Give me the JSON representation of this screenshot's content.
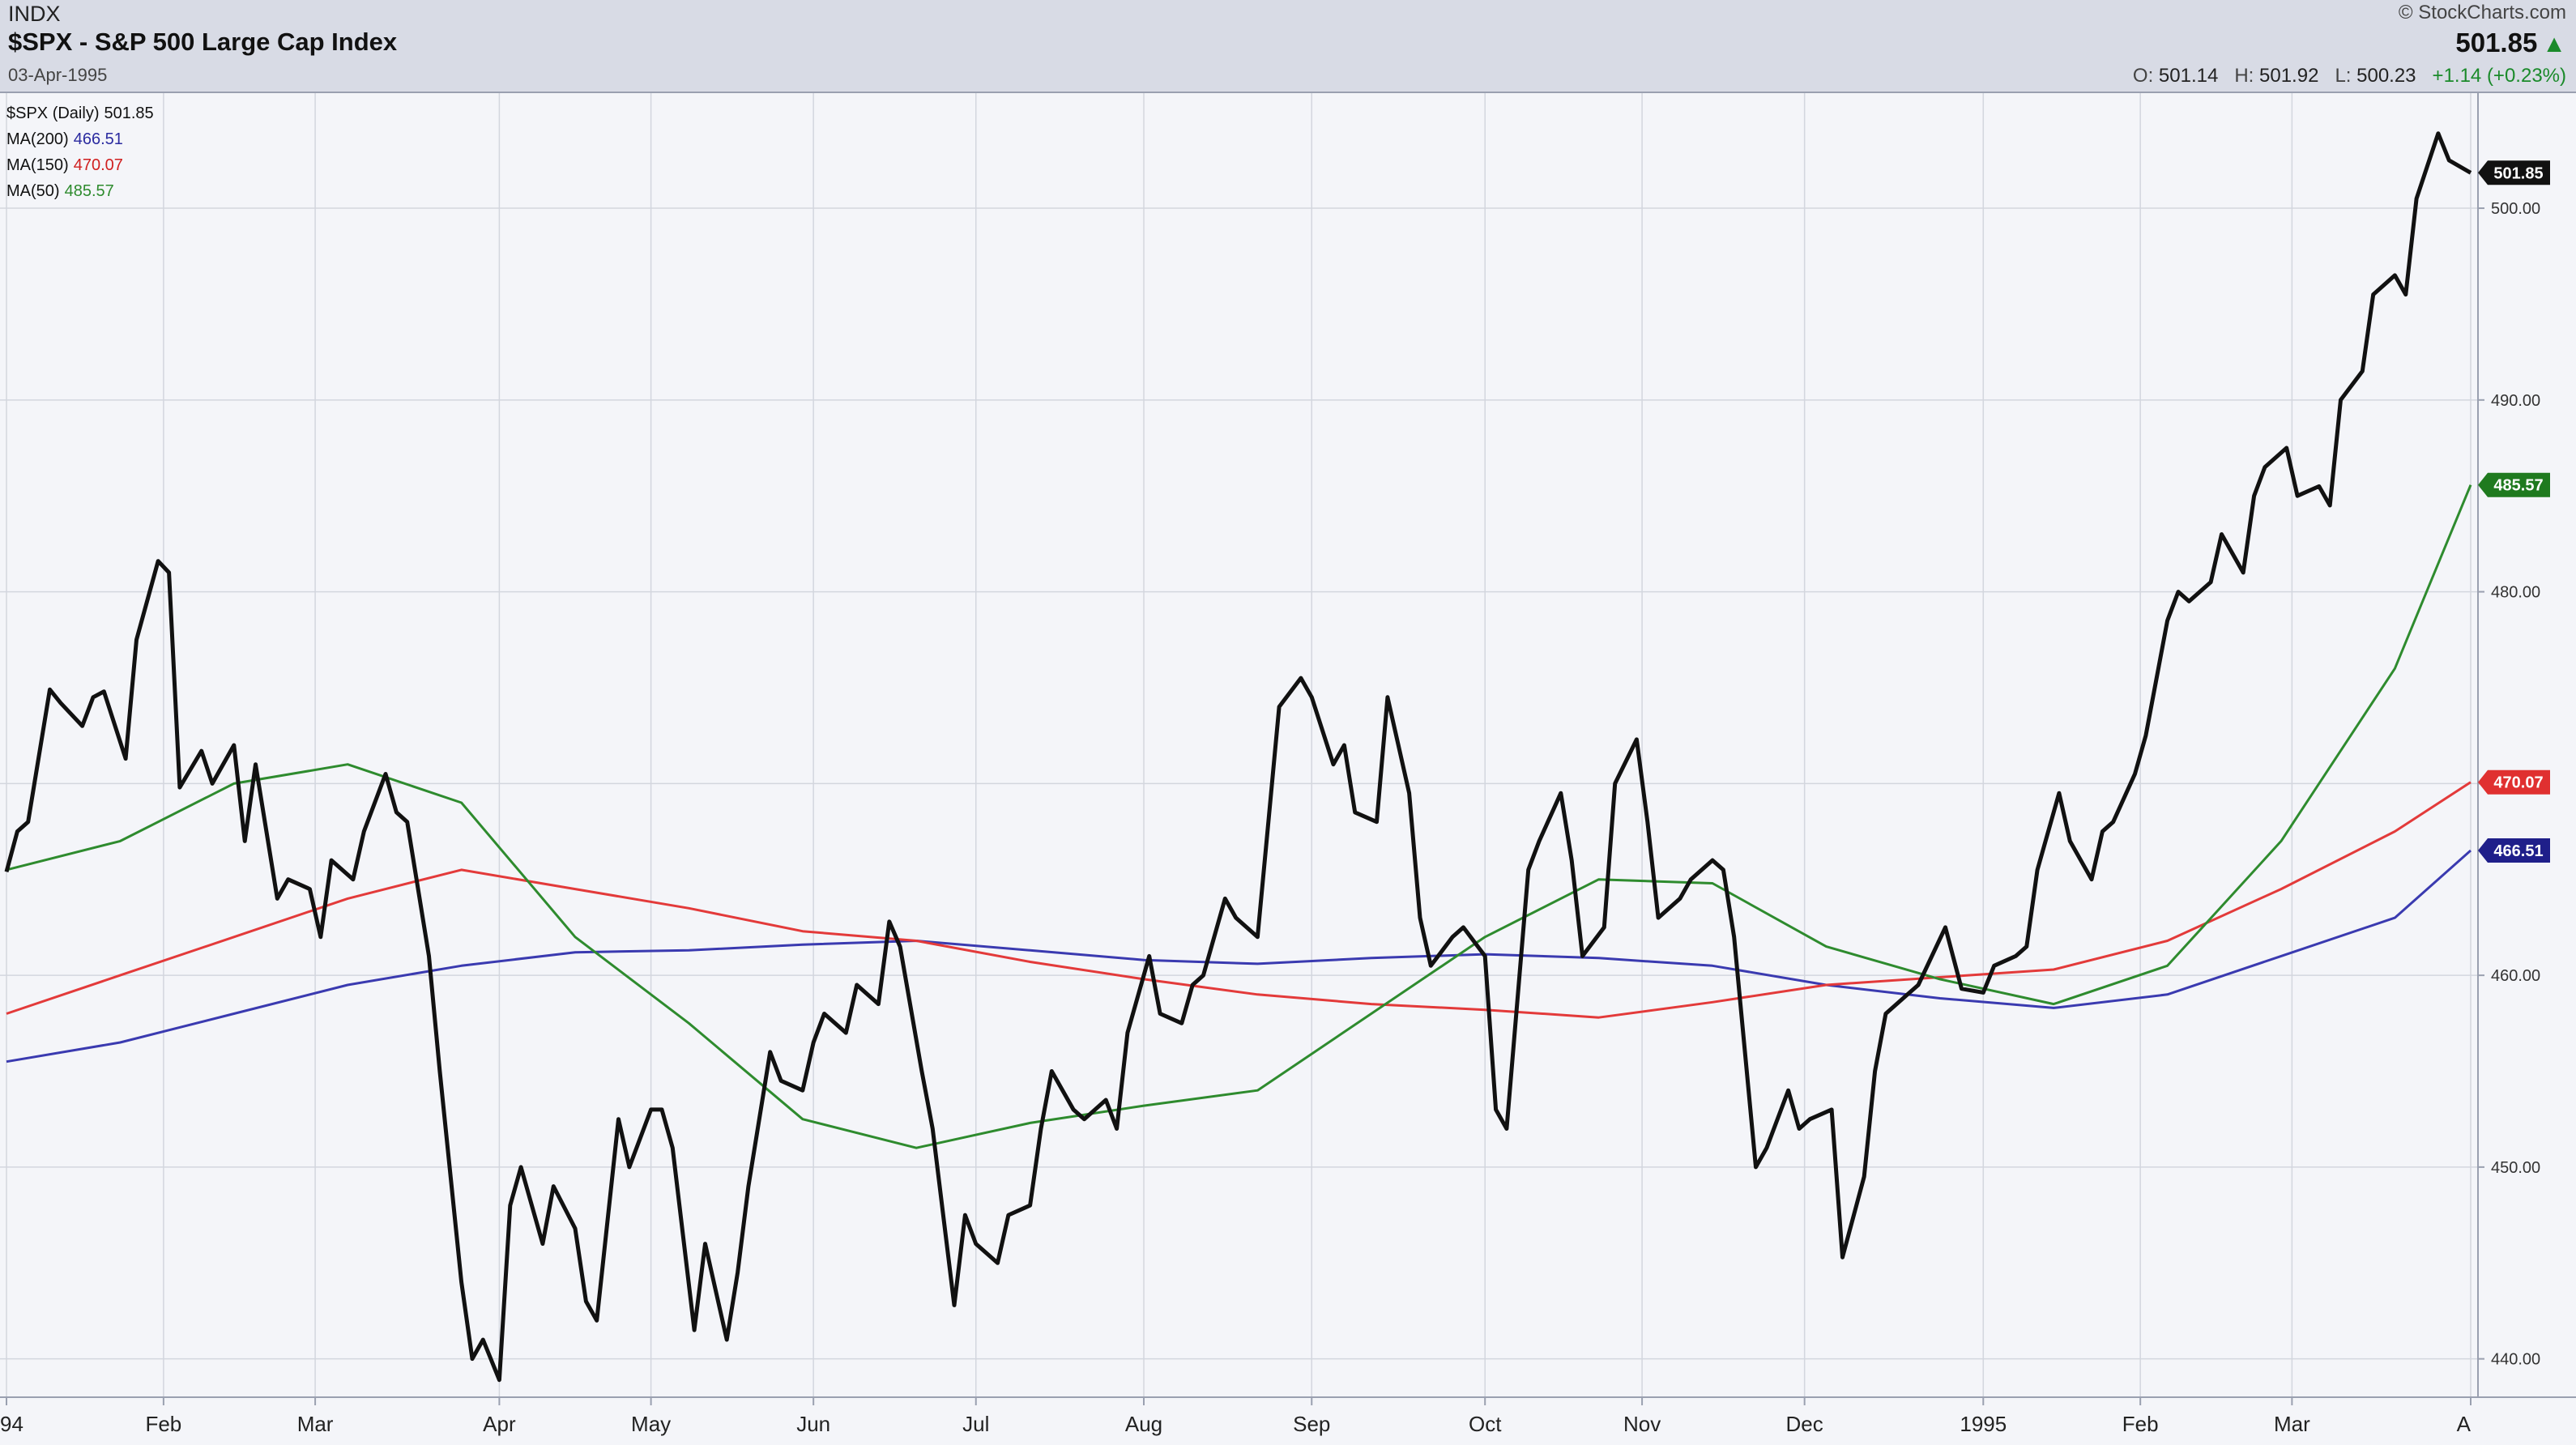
{
  "header": {
    "exchange": "INDX",
    "title": "$SPX - S&P 500 Large Cap Index",
    "date": "03-Apr-1995",
    "brand": "© StockCharts.com",
    "last": "501.85",
    "ohlc": {
      "o_label": "O:",
      "o": "501.14",
      "h_label": "H:",
      "h": "501.92",
      "l_label": "L:",
      "l": "500.23",
      "change": "+1.14 (+0.23%)"
    }
  },
  "legend": [
    {
      "label": "$SPX (Daily)",
      "value": "501.85",
      "color": "#111111"
    },
    {
      "label": "MA(200)",
      "value": "466.51",
      "color": "#2b2ba0"
    },
    {
      "label": "MA(150)",
      "value": "470.07",
      "color": "#e03030"
    },
    {
      "label": "MA(50)",
      "value": "485.57",
      "color": "#2e8b2e"
    }
  ],
  "colors": {
    "price": "#111111",
    "ma200": "#3a3ab0",
    "ma150": "#e33a3a",
    "ma50": "#2e8b2e",
    "grid": "#d3d6de",
    "up": "#1a8a2a"
  },
  "chart_data": {
    "type": "line",
    "title": "$SPX - S&P 500 Large Cap Index",
    "ylim": [
      438,
      506
    ],
    "y_ticks": [
      "440.00",
      "450.00",
      "460.00",
      "470.00",
      "480.00",
      "490.00",
      "500.00"
    ],
    "x_tick_labels": [
      "94",
      "Feb",
      "Mar",
      "Apr",
      "May",
      "Jun",
      "Jul",
      "Aug",
      "Sep",
      "Oct",
      "Nov",
      "Dec",
      "1995",
      "Feb",
      "Mar",
      "A"
    ],
    "x_ticks": [
      {
        "label": "94",
        "date": "1994-01-03"
      },
      {
        "label": "Feb",
        "date": "1994-02-01"
      },
      {
        "label": "Mar",
        "date": "1994-03-01"
      },
      {
        "label": "Apr",
        "date": "1994-04-04"
      },
      {
        "label": "May",
        "date": "1994-05-02"
      },
      {
        "label": "Jun",
        "date": "1994-06-01"
      },
      {
        "label": "Jul",
        "date": "1994-07-01"
      },
      {
        "label": "Aug",
        "date": "1994-08-01"
      },
      {
        "label": "Sep",
        "date": "1994-09-01"
      },
      {
        "label": "Oct",
        "date": "1994-10-03"
      },
      {
        "label": "Nov",
        "date": "1994-11-01"
      },
      {
        "label": "Dec",
        "date": "1994-12-01"
      },
      {
        "label": "1995",
        "date": "1995-01-03"
      },
      {
        "label": "Feb",
        "date": "1995-02-01"
      },
      {
        "label": "Mar",
        "date": "1995-03-01"
      },
      {
        "label": "A",
        "date": "1995-04-03"
      }
    ],
    "last_value_tags": [
      {
        "series": "$SPX (Daily)",
        "value": "501.85",
        "color": "#111111"
      },
      {
        "series": "MA(50)",
        "value": "485.57",
        "color": "#1f7a1f"
      },
      {
        "series": "MA(150)",
        "value": "470.07",
        "color": "#e03030"
      },
      {
        "series": "MA(200)",
        "value": "466.51",
        "color": "#1f1f8a"
      }
    ],
    "series": [
      {
        "name": "$SPX (Daily)",
        "color": "#111111",
        "points": [
          [
            "1994-01-03",
            465.4
          ],
          [
            "1994-01-05",
            467.5
          ],
          [
            "1994-01-07",
            468.0
          ],
          [
            "1994-01-11",
            474.9
          ],
          [
            "1994-01-13",
            474.2
          ],
          [
            "1994-01-17",
            473.0
          ],
          [
            "1994-01-19",
            474.5
          ],
          [
            "1994-01-21",
            474.8
          ],
          [
            "1994-01-25",
            471.3
          ],
          [
            "1994-01-27",
            477.5
          ],
          [
            "1994-01-31",
            481.6
          ],
          [
            "1994-02-02",
            481.0
          ],
          [
            "1994-02-04",
            469.8
          ],
          [
            "1994-02-08",
            471.7
          ],
          [
            "1994-02-10",
            470.0
          ],
          [
            "1994-02-14",
            472.0
          ],
          [
            "1994-02-16",
            467.0
          ],
          [
            "1994-02-18",
            471.0
          ],
          [
            "1994-02-22",
            464.0
          ],
          [
            "1994-02-24",
            465.0
          ],
          [
            "1994-02-28",
            464.5
          ],
          [
            "1994-03-02",
            462.0
          ],
          [
            "1994-03-04",
            466.0
          ],
          [
            "1994-03-08",
            465.0
          ],
          [
            "1994-03-10",
            467.5
          ],
          [
            "1994-03-14",
            470.5
          ],
          [
            "1994-03-16",
            468.5
          ],
          [
            "1994-03-18",
            468.0
          ],
          [
            "1994-03-22",
            461.0
          ],
          [
            "1994-03-24",
            455.0
          ],
          [
            "1994-03-28",
            444.0
          ],
          [
            "1994-03-30",
            440.0
          ],
          [
            "1994-04-01",
            441.0
          ],
          [
            "1994-04-04",
            438.9
          ],
          [
            "1994-04-06",
            448.0
          ],
          [
            "1994-04-08",
            450.0
          ],
          [
            "1994-04-12",
            446.0
          ],
          [
            "1994-04-14",
            449.0
          ],
          [
            "1994-04-18",
            446.8
          ],
          [
            "1994-04-20",
            443.0
          ],
          [
            "1994-04-22",
            442.0
          ],
          [
            "1994-04-26",
            452.5
          ],
          [
            "1994-04-28",
            450.0
          ],
          [
            "1994-05-02",
            453.0
          ],
          [
            "1994-05-04",
            453.0
          ],
          [
            "1994-05-06",
            451.0
          ],
          [
            "1994-05-10",
            441.5
          ],
          [
            "1994-05-12",
            446.0
          ],
          [
            "1994-05-16",
            441.0
          ],
          [
            "1994-05-18",
            444.5
          ],
          [
            "1994-05-20",
            449.0
          ],
          [
            "1994-05-24",
            456.0
          ],
          [
            "1994-05-26",
            454.5
          ],
          [
            "1994-05-30",
            454.0
          ],
          [
            "1994-06-01",
            456.5
          ],
          [
            "1994-06-03",
            458.0
          ],
          [
            "1994-06-07",
            457.0
          ],
          [
            "1994-06-09",
            459.5
          ],
          [
            "1994-06-13",
            458.5
          ],
          [
            "1994-06-15",
            462.8
          ],
          [
            "1994-06-17",
            461.5
          ],
          [
            "1994-06-21",
            455.0
          ],
          [
            "1994-06-23",
            452.0
          ],
          [
            "1994-06-27",
            442.8
          ],
          [
            "1994-06-29",
            447.5
          ],
          [
            "1994-07-01",
            446.0
          ],
          [
            "1994-07-05",
            445.0
          ],
          [
            "1994-07-07",
            447.5
          ],
          [
            "1994-07-11",
            448.0
          ],
          [
            "1994-07-13",
            452.0
          ],
          [
            "1994-07-15",
            455.0
          ],
          [
            "1994-07-19",
            453.0
          ],
          [
            "1994-07-21",
            452.5
          ],
          [
            "1994-07-25",
            453.5
          ],
          [
            "1994-07-27",
            452.0
          ],
          [
            "1994-07-29",
            457.0
          ],
          [
            "1994-08-02",
            461.0
          ],
          [
            "1994-08-04",
            458.0
          ],
          [
            "1994-08-08",
            457.5
          ],
          [
            "1994-08-10",
            459.5
          ],
          [
            "1994-08-12",
            460.0
          ],
          [
            "1994-08-16",
            464.0
          ],
          [
            "1994-08-18",
            463.0
          ],
          [
            "1994-08-22",
            462.0
          ],
          [
            "1994-08-24",
            468.0
          ],
          [
            "1994-08-26",
            474.0
          ],
          [
            "1994-08-30",
            475.5
          ],
          [
            "1994-09-01",
            474.5
          ],
          [
            "1994-09-05",
            471.0
          ],
          [
            "1994-09-07",
            472.0
          ],
          [
            "1994-09-09",
            468.5
          ],
          [
            "1994-09-13",
            468.0
          ],
          [
            "1994-09-15",
            474.5
          ],
          [
            "1994-09-19",
            469.5
          ],
          [
            "1994-09-21",
            463.0
          ],
          [
            "1994-09-23",
            460.5
          ],
          [
            "1994-09-27",
            462.0
          ],
          [
            "1994-09-29",
            462.5
          ],
          [
            "1994-10-03",
            461.0
          ],
          [
            "1994-10-05",
            453.0
          ],
          [
            "1994-10-07",
            452.0
          ],
          [
            "1994-10-11",
            465.5
          ],
          [
            "1994-10-13",
            467.0
          ],
          [
            "1994-10-17",
            469.5
          ],
          [
            "1994-10-19",
            466.0
          ],
          [
            "1994-10-21",
            461.0
          ],
          [
            "1994-10-25",
            462.5
          ],
          [
            "1994-10-27",
            470.0
          ],
          [
            "1994-10-31",
            472.3
          ],
          [
            "1994-11-02",
            468.0
          ],
          [
            "1994-11-04",
            463.0
          ],
          [
            "1994-11-08",
            464.0
          ],
          [
            "1994-11-10",
            465.0
          ],
          [
            "1994-11-14",
            466.0
          ],
          [
            "1994-11-16",
            465.5
          ],
          [
            "1994-11-18",
            462.0
          ],
          [
            "1994-11-22",
            450.0
          ],
          [
            "1994-11-24",
            451.0
          ],
          [
            "1994-11-28",
            454.0
          ],
          [
            "1994-11-30",
            452.0
          ],
          [
            "1994-12-02",
            452.5
          ],
          [
            "1994-12-06",
            453.0
          ],
          [
            "1994-12-08",
            445.3
          ],
          [
            "1994-12-12",
            449.5
          ],
          [
            "1994-12-14",
            455.0
          ],
          [
            "1994-12-16",
            458.0
          ],
          [
            "1994-12-20",
            459.0
          ],
          [
            "1994-12-22",
            459.5
          ],
          [
            "1994-12-27",
            462.5
          ],
          [
            "1994-12-30",
            459.3
          ],
          [
            "1995-01-03",
            459.1
          ],
          [
            "1995-01-05",
            460.5
          ],
          [
            "1995-01-09",
            461.0
          ],
          [
            "1995-01-11",
            461.5
          ],
          [
            "1995-01-13",
            465.5
          ],
          [
            "1995-01-17",
            469.5
          ],
          [
            "1995-01-19",
            467.0
          ],
          [
            "1995-01-23",
            465.0
          ],
          [
            "1995-01-25",
            467.5
          ],
          [
            "1995-01-27",
            468.0
          ],
          [
            "1995-01-31",
            470.5
          ],
          [
            "1995-02-02",
            472.5
          ],
          [
            "1995-02-06",
            478.5
          ],
          [
            "1995-02-08",
            480.0
          ],
          [
            "1995-02-10",
            479.5
          ],
          [
            "1995-02-14",
            480.5
          ],
          [
            "1995-02-16",
            483.0
          ],
          [
            "1995-02-20",
            481.0
          ],
          [
            "1995-02-22",
            485.0
          ],
          [
            "1995-02-24",
            486.5
          ],
          [
            "1995-02-28",
            487.5
          ],
          [
            "1995-03-02",
            485.0
          ],
          [
            "1995-03-06",
            485.5
          ],
          [
            "1995-03-08",
            484.5
          ],
          [
            "1995-03-10",
            490.0
          ],
          [
            "1995-03-14",
            491.5
          ],
          [
            "1995-03-16",
            495.5
          ],
          [
            "1995-03-20",
            496.5
          ],
          [
            "1995-03-22",
            495.5
          ],
          [
            "1995-03-24",
            500.5
          ],
          [
            "1995-03-28",
            503.9
          ],
          [
            "1995-03-30",
            502.5
          ],
          [
            "1995-04-03",
            501.85
          ]
        ]
      },
      {
        "name": "MA(200)",
        "color": "#3a3ab0",
        "points": [
          [
            "1994-01-03",
            455.5
          ],
          [
            "1994-01-24",
            456.5
          ],
          [
            "1994-02-14",
            458.0
          ],
          [
            "1994-03-07",
            459.5
          ],
          [
            "1994-03-28",
            460.5
          ],
          [
            "1994-04-18",
            461.2
          ],
          [
            "1994-05-09",
            461.3
          ],
          [
            "1994-05-30",
            461.6
          ],
          [
            "1994-06-20",
            461.8
          ],
          [
            "1994-07-11",
            461.3
          ],
          [
            "1994-08-01",
            460.8
          ],
          [
            "1994-08-22",
            460.6
          ],
          [
            "1994-09-12",
            460.9
          ],
          [
            "1994-10-03",
            461.1
          ],
          [
            "1994-10-24",
            460.9
          ],
          [
            "1994-11-14",
            460.5
          ],
          [
            "1994-12-05",
            459.5
          ],
          [
            "1994-12-26",
            458.8
          ],
          [
            "1995-01-16",
            458.3
          ],
          [
            "1995-02-06",
            459.0
          ],
          [
            "1995-02-27",
            461.0
          ],
          [
            "1995-03-20",
            463.0
          ],
          [
            "1995-04-03",
            466.51
          ]
        ]
      },
      {
        "name": "MA(150)",
        "color": "#e33a3a",
        "points": [
          [
            "1994-01-03",
            458.0
          ],
          [
            "1994-01-24",
            460.0
          ],
          [
            "1994-02-14",
            462.0
          ],
          [
            "1994-03-07",
            464.0
          ],
          [
            "1994-03-28",
            465.5
          ],
          [
            "1994-04-18",
            464.5
          ],
          [
            "1994-05-09",
            463.5
          ],
          [
            "1994-05-30",
            462.3
          ],
          [
            "1994-06-20",
            461.8
          ],
          [
            "1994-07-11",
            460.7
          ],
          [
            "1994-08-01",
            459.8
          ],
          [
            "1994-08-22",
            459.0
          ],
          [
            "1994-09-12",
            458.5
          ],
          [
            "1994-10-03",
            458.2
          ],
          [
            "1994-10-24",
            457.8
          ],
          [
            "1994-11-14",
            458.6
          ],
          [
            "1994-12-05",
            459.5
          ],
          [
            "1994-12-26",
            459.9
          ],
          [
            "1995-01-16",
            460.3
          ],
          [
            "1995-02-06",
            461.8
          ],
          [
            "1995-02-27",
            464.5
          ],
          [
            "1995-03-20",
            467.5
          ],
          [
            "1995-04-03",
            470.07
          ]
        ]
      },
      {
        "name": "MA(50)",
        "color": "#2e8b2e",
        "points": [
          [
            "1994-01-03",
            465.5
          ],
          [
            "1994-01-24",
            467.0
          ],
          [
            "1994-02-14",
            470.0
          ],
          [
            "1994-03-07",
            471.0
          ],
          [
            "1994-03-28",
            469.0
          ],
          [
            "1994-04-18",
            462.0
          ],
          [
            "1994-05-09",
            457.5
          ],
          [
            "1994-05-30",
            452.5
          ],
          [
            "1994-06-20",
            451.0
          ],
          [
            "1994-07-11",
            452.3
          ],
          [
            "1994-08-01",
            453.2
          ],
          [
            "1994-08-22",
            454.0
          ],
          [
            "1994-09-12",
            458.0
          ],
          [
            "1994-10-03",
            462.0
          ],
          [
            "1994-10-24",
            465.0
          ],
          [
            "1994-11-14",
            464.8
          ],
          [
            "1994-12-05",
            461.5
          ],
          [
            "1994-12-26",
            459.8
          ],
          [
            "1995-01-16",
            458.5
          ],
          [
            "1995-02-06",
            460.5
          ],
          [
            "1995-02-27",
            467.0
          ],
          [
            "1995-03-20",
            476.0
          ],
          [
            "1995-04-03",
            485.57
          ]
        ]
      }
    ]
  }
}
